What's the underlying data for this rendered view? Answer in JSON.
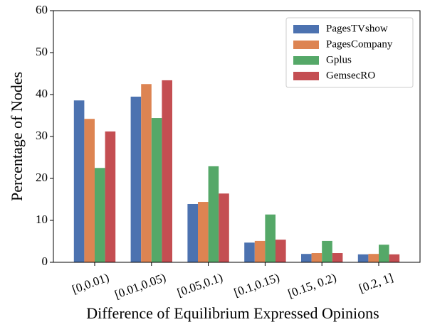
{
  "chart_data": {
    "type": "bar",
    "xlabel": "Difference of Equilibrium Expressed Opinions",
    "ylabel": "Percentage of Nodes",
    "categories": [
      "[0,0.01)",
      "[0.01,0.05)",
      "[0.05,0.1)",
      "[0.1,0.15)",
      "[0.15, 0.2)",
      "[0.2, 1]"
    ],
    "series": [
      {
        "name": "PagesTVshow",
        "color": "#4c72b0",
        "values": [
          38.6,
          39.5,
          13.9,
          4.7,
          2.0,
          1.9
        ]
      },
      {
        "name": "PagesCompany",
        "color": "#dd8452",
        "values": [
          34.2,
          42.5,
          14.4,
          5.1,
          2.2,
          2.0
        ]
      },
      {
        "name": "Gplus",
        "color": "#55a868",
        "values": [
          22.5,
          34.4,
          22.9,
          11.4,
          5.1,
          4.2
        ]
      },
      {
        "name": "GemsecRO",
        "color": "#c44e52",
        "values": [
          31.2,
          43.4,
          16.4,
          5.4,
          2.2,
          1.9
        ]
      }
    ],
    "ylim": [
      0,
      60
    ],
    "yticks": [
      0,
      10,
      20,
      30,
      40,
      50,
      60
    ],
    "legend": "upper right"
  }
}
